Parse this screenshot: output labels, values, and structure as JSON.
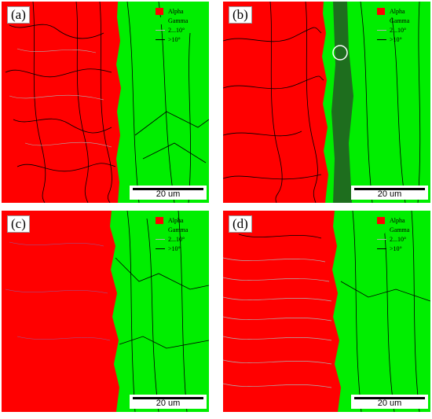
{
  "panels": [
    {
      "label": "(a)",
      "legend": {
        "alpha": "Alpha",
        "gamma": "Gamma",
        "low": "2...10°",
        "high": ">10°"
      },
      "scale": "20 um"
    },
    {
      "label": "(b)",
      "legend": {
        "alpha": "Alpha",
        "gamma": "Gamma",
        "low": "2...10°",
        "high": ">10°"
      },
      "scale": "20 um"
    },
    {
      "label": "(c)",
      "legend": {
        "alpha": "Alpha",
        "gamma": "Gamma",
        "low": "2...10°",
        "high": ">10°"
      },
      "scale": "20 um"
    },
    {
      "label": "(d)",
      "legend": {
        "alpha": "Alpha",
        "gamma": "Gamma",
        "low": "2...10°",
        "high": ">10°"
      },
      "scale": "20 um"
    }
  ],
  "colors": {
    "alpha": "#ff0000",
    "gamma": "#00ee00",
    "dark_gamma": "#1e6e1e",
    "low_angle": "#b0b0b0",
    "high_angle": "#000000"
  }
}
